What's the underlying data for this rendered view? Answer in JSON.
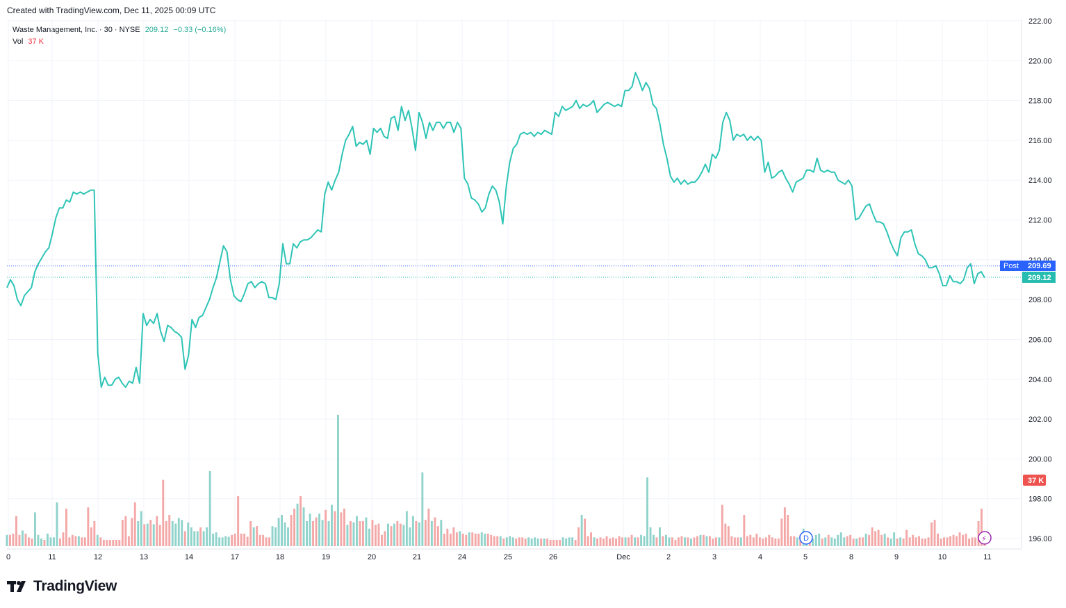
{
  "header": {
    "created_text": "Created with TradingView.com, Dec 11, 2025 00:09 UTC"
  },
  "legend": {
    "symbol": "Waste Management, Inc. · 30 · NYSE",
    "price": "209.12",
    "change": "−0.33 (−0.16%)",
    "vol_label": "Vol",
    "vol_value": "37 K"
  },
  "badges": {
    "post_label": "Post",
    "post_price": "209.69",
    "last_price": "209.12",
    "vol_badge": "37 K",
    "dividend_marker": "D",
    "earnings_marker": "⚡"
  },
  "colors": {
    "line": "#2ec4b6",
    "up_volume": "#8fd3cb",
    "down_volume": "#f4a7a7",
    "post_badge": "#2962ff",
    "last_badge": "#26bdb0",
    "vol_badge": "#ef5350"
  },
  "brand": {
    "name": "TradingView"
  },
  "chart_data": {
    "type": "line",
    "symbol": "Waste Management, Inc.",
    "interval": "30",
    "exchange": "NYSE",
    "y_ticks": [
      196,
      198,
      200,
      202,
      204,
      206,
      208,
      210,
      212,
      214,
      216,
      218,
      220,
      222
    ],
    "ylim": [
      195.7,
      222
    ],
    "x_tick_labels": [
      "0",
      "11",
      "12",
      "13",
      "14",
      "17",
      "18",
      "19",
      "20",
      "21",
      "24",
      "25",
      "26",
      "Dec",
      "2",
      "3",
      "4",
      "5",
      "8",
      "9",
      "10",
      "11"
    ],
    "price_series": [
      208.6,
      209.0,
      208.7,
      208.0,
      207.7,
      208.2,
      208.4,
      208.6,
      209.4,
      209.8,
      210.1,
      210.4,
      210.6,
      211.3,
      212.1,
      212.6,
      212.6,
      213.0,
      212.9,
      213.4,
      213.3,
      213.4,
      213.3,
      213.4,
      213.5,
      213.5,
      205.3,
      203.6,
      204.1,
      203.7,
      203.7,
      204.0,
      204.1,
      203.8,
      203.6,
      203.9,
      203.8,
      204.6,
      203.8,
      207.3,
      206.7,
      207.0,
      206.8,
      207.3,
      206.4,
      205.9,
      206.7,
      206.6,
      206.4,
      206.3,
      206.1,
      204.5,
      205.2,
      207.0,
      206.6,
      207.1,
      207.2,
      207.6,
      208.0,
      208.6,
      209.1,
      209.9,
      210.7,
      210.4,
      209.0,
      208.2,
      208.0,
      207.9,
      208.3,
      208.8,
      208.9,
      208.6,
      208.8,
      208.9,
      208.8,
      208.1,
      208.1,
      208.0,
      208.8,
      210.8,
      209.8,
      209.8,
      210.8,
      210.6,
      210.9,
      211.0,
      211.0,
      211.1,
      211.3,
      211.5,
      211.4,
      213.3,
      213.9,
      213.5,
      214.0,
      214.4,
      215.3,
      216.0,
      216.3,
      216.7,
      215.7,
      215.9,
      215.8,
      216.0,
      215.3,
      216.6,
      216.4,
      216.6,
      216.2,
      216.1,
      217.1,
      217.2,
      216.5,
      217.7,
      217.0,
      217.5,
      216.6,
      215.5,
      217.4,
      216.9,
      216.1,
      216.9,
      216.5,
      216.9,
      216.9,
      216.6,
      216.9,
      216.9,
      216.4,
      216.9,
      216.6,
      214.1,
      213.8,
      213.1,
      213.0,
      212.8,
      212.4,
      212.6,
      213.3,
      213.7,
      213.5,
      212.9,
      211.8,
      213.7,
      214.9,
      215.6,
      215.8,
      216.3,
      216.4,
      216.3,
      216.4,
      216.2,
      216.4,
      216.3,
      216.5,
      216.4,
      216.3,
      217.4,
      217.2,
      217.7,
      217.5,
      217.6,
      217.7,
      218.0,
      217.6,
      217.8,
      217.7,
      217.8,
      218.0,
      217.4,
      217.6,
      217.8,
      217.9,
      217.8,
      217.7,
      217.8,
      217.7,
      218.5,
      218.5,
      218.7,
      219.4,
      219.0,
      218.5,
      218.9,
      218.6,
      217.8,
      217.6,
      216.8,
      215.8,
      215.1,
      214.2,
      213.9,
      214.1,
      213.8,
      214.0,
      213.8,
      213.9,
      213.9,
      214.1,
      214.4,
      214.8,
      214.4,
      215.3,
      215.1,
      215.5,
      216.9,
      217.4,
      217.0,
      216.0,
      216.3,
      216.2,
      216.3,
      216.0,
      216.2,
      216.0,
      216.2,
      216.0,
      214.4,
      214.9,
      214.1,
      214.2,
      214.4,
      214.5,
      214.1,
      213.8,
      213.4,
      213.9,
      214.0,
      214.1,
      214.5,
      214.5,
      214.4,
      215.1,
      214.5,
      214.4,
      214.5,
      214.4,
      214.4,
      214.0,
      213.9,
      213.8,
      214.0,
      213.7,
      212.0,
      212.1,
      212.4,
      212.7,
      212.8,
      212.3,
      211.9,
      211.9,
      211.8,
      211.4,
      210.9,
      210.5,
      210.2,
      211.1,
      211.4,
      211.4,
      211.5,
      210.8,
      210.3,
      210.2,
      210.0,
      209.6,
      209.6,
      209.7,
      209.3,
      208.7,
      208.7,
      209.2,
      208.9,
      208.9,
      208.8,
      209.0,
      209.6,
      209.8,
      208.8,
      209.3,
      209.4,
      209.1
    ],
    "volume_up": [
      true,
      false,
      false,
      false,
      false,
      true,
      false,
      false,
      false,
      true,
      true,
      true,
      false,
      true,
      true,
      true,
      true,
      false,
      false,
      false,
      false,
      false,
      false,
      true,
      false,
      false,
      false,
      false,
      false,
      true,
      false,
      false,
      false,
      false,
      false,
      false,
      false,
      false,
      false,
      false,
      false,
      false,
      true,
      true,
      false,
      true,
      false,
      true,
      false,
      false,
      false,
      false,
      false,
      true,
      true,
      true,
      true,
      false,
      true,
      true,
      true,
      true,
      false,
      true,
      true,
      true,
      true,
      true,
      true,
      true,
      true,
      true,
      false,
      false,
      false,
      false,
      false,
      false,
      false,
      true,
      false,
      false,
      false,
      false,
      false,
      true,
      true,
      true,
      true,
      true,
      true,
      false,
      false,
      true,
      false,
      true,
      true,
      true,
      false,
      false,
      true,
      true,
      false,
      true,
      true,
      false,
      true,
      false,
      false,
      true,
      false,
      true,
      true,
      false,
      false,
      true,
      true,
      false,
      false,
      false,
      false,
      false,
      true,
      false,
      true,
      false,
      false,
      true,
      true,
      true,
      true,
      false,
      true,
      true,
      false,
      false,
      true,
      false,
      false,
      true,
      false,
      false,
      false,
      false,
      false,
      true,
      false,
      false,
      true,
      false,
      false,
      false,
      true,
      true,
      false,
      false,
      false,
      false,
      true,
      false,
      true,
      true,
      true,
      false,
      false,
      false,
      false,
      true,
      true,
      true,
      true,
      false,
      true,
      false,
      false,
      false,
      false,
      false,
      true,
      true,
      true,
      true,
      false,
      false,
      true,
      false,
      false,
      false,
      true,
      false,
      false,
      false,
      false,
      false,
      false,
      false,
      false,
      false,
      true,
      false,
      false,
      true,
      false,
      true,
      true,
      true,
      true,
      true,
      false,
      true,
      false,
      true,
      true,
      false,
      false,
      false,
      false,
      true,
      false,
      true,
      false,
      false,
      true,
      false,
      true,
      false,
      false,
      false,
      true,
      false,
      false,
      false,
      false,
      false,
      false,
      true,
      false,
      false,
      false,
      false,
      false,
      false,
      false,
      false,
      false,
      false,
      false,
      false,
      false,
      false,
      false,
      false,
      false,
      true,
      false,
      true,
      true,
      false,
      true,
      true,
      true,
      false,
      true,
      false,
      true,
      true,
      true,
      true,
      true,
      false,
      false,
      false,
      true,
      false,
      false,
      true,
      false,
      false,
      false,
      false,
      false,
      true,
      false,
      true,
      true,
      false,
      true,
      false,
      false
    ],
    "volume_heights_k": [
      18,
      18,
      20,
      48,
      18,
      25,
      20,
      14,
      12,
      54,
      18,
      12,
      10,
      20,
      14,
      14,
      70,
      12,
      22,
      60,
      14,
      18,
      16,
      16,
      14,
      14,
      62,
      30,
      40,
      18,
      14,
      10,
      10,
      10,
      10,
      10,
      10,
      42,
      48,
      16,
      45,
      70,
      40,
      56,
      35,
      36,
      42,
      35,
      48,
      34,
      106,
      40,
      50,
      40,
      36,
      45,
      42,
      24,
      38,
      30,
      24,
      24,
      30,
      24,
      30,
      120,
      20,
      22,
      14,
      14,
      16,
      15,
      18,
      20,
      80,
      20,
      20,
      15,
      40,
      30,
      32,
      18,
      18,
      14,
      14,
      32,
      30,
      45,
      50,
      38,
      30,
      50,
      60,
      68,
      80,
      62,
      40,
      52,
      40,
      46,
      52,
      42,
      58,
      40,
      66,
      56,
      210,
      54,
      60,
      34,
      40,
      38,
      48,
      40,
      40,
      46,
      28,
      42,
      34,
      36,
      18,
      24,
      36,
      32,
      36,
      40,
      36,
      34,
      56,
      30,
      48,
      40,
      38,
      118,
      42,
      60,
      40,
      46,
      32,
      42,
      20,
      28,
      20,
      30,
      22,
      24,
      20,
      18,
      22,
      22,
      20,
      20,
      22,
      20,
      20,
      18,
      16,
      16,
      16,
      12,
      14,
      16,
      14,
      12,
      14,
      14,
      12,
      14,
      12,
      14,
      12,
      12,
      12,
      12,
      10,
      10,
      10,
      10,
      14,
      12,
      14,
      14,
      10,
      30,
      50,
      44,
      16,
      22,
      14,
      12,
      14,
      12,
      16,
      12,
      14,
      12,
      16,
      14,
      14,
      14,
      18,
      14,
      14,
      18,
      16,
      110,
      30,
      18,
      14,
      30,
      16,
      18,
      14,
      14,
      10,
      14,
      16,
      14,
      14,
      12,
      14,
      16,
      18,
      18,
      16,
      16,
      12,
      14,
      14,
      66,
      36,
      32,
      16,
      14,
      14,
      14,
      50,
      16,
      18,
      14,
      20,
      14,
      12,
      14,
      18,
      14,
      12,
      12,
      44,
      62,
      50,
      16,
      16,
      14,
      18,
      28,
      20,
      12,
      12,
      18,
      20,
      12,
      14,
      18,
      14,
      12,
      18,
      22,
      14,
      16,
      18,
      12,
      12,
      14,
      14,
      20,
      18,
      30,
      24,
      26,
      18,
      20,
      14,
      12,
      22,
      12,
      14,
      12,
      26,
      14,
      18,
      14,
      16,
      12,
      12,
      14,
      38,
      42,
      20,
      12,
      14,
      14,
      16,
      18,
      16,
      22,
      18,
      20,
      12,
      14,
      14,
      40,
      60,
      20
    ]
  }
}
